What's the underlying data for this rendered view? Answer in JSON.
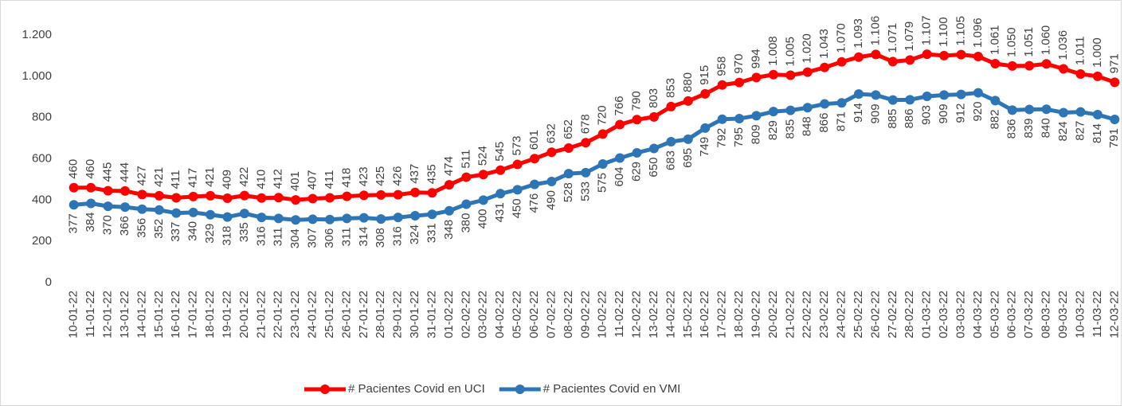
{
  "chart_data": {
    "type": "line",
    "categories": [
      "10-01-22",
      "11-01-22",
      "12-01-22",
      "13-01-22",
      "14-01-22",
      "15-01-22",
      "16-01-22",
      "17-01-22",
      "18-01-22",
      "19-01-22",
      "20-01-22",
      "21-01-22",
      "22-01-22",
      "23-01-22",
      "24-01-22",
      "25-01-22",
      "26-01-22",
      "27-01-22",
      "28-01-22",
      "29-01-22",
      "30-01-22",
      "31-01-22",
      "01-02-22",
      "02-02-22",
      "03-02-22",
      "04-02-22",
      "05-02-22",
      "06-02-22",
      "07-02-22",
      "08-02-22",
      "09-02-22",
      "10-02-22",
      "11-02-22",
      "12-02-22",
      "13-02-22",
      "14-02-22",
      "15-02-22",
      "16-02-22",
      "17-02-22",
      "18-02-22",
      "19-02-22",
      "20-02-22",
      "21-02-22",
      "22-02-22",
      "23-02-22",
      "24-02-22",
      "25-02-22",
      "26-02-22",
      "27-02-22",
      "28-02-22",
      "01-03-22",
      "02-03-22",
      "03-03-22",
      "04-03-22",
      "05-03-22",
      "06-03-22",
      "07-03-22",
      "08-03-22",
      "09-03-22",
      "10-03-22",
      "11-03-22",
      "12-03-22"
    ],
    "series": [
      {
        "name": "# Pacientes Covid en UCI",
        "color": "#ff0000",
        "values": [
          460,
          460,
          445,
          444,
          427,
          421,
          411,
          417,
          421,
          409,
          422,
          410,
          412,
          401,
          407,
          411,
          418,
          423,
          425,
          426,
          437,
          435,
          474,
          511,
          524,
          545,
          573,
          601,
          632,
          652,
          678,
          720,
          766,
          790,
          803,
          853,
          880,
          915,
          958,
          970,
          994,
          1008,
          1005,
          1020,
          1043,
          1070,
          1093,
          1106,
          1071,
          1079,
          1107,
          1100,
          1105,
          1096,
          1061,
          1050,
          1051,
          1060,
          1036,
          1011,
          1000,
          971
        ],
        "value_labels": [
          "460",
          "460",
          "445",
          "444",
          "427",
          "421",
          "411",
          "417",
          "421",
          "409",
          "422",
          "410",
          "412",
          "401",
          "407",
          "411",
          "418",
          "423",
          "425",
          "426",
          "437",
          "435",
          "474",
          "511",
          "524",
          "545",
          "573",
          "601",
          "632",
          "652",
          "678",
          "720",
          "766",
          "790",
          "803",
          "853",
          "880",
          "915",
          "958",
          "970",
          "994",
          "1.008",
          "1.005",
          "1.020",
          "1.043",
          "1.070",
          "1.093",
          "1.106",
          "1.071",
          "1.079",
          "1.107",
          "1.100",
          "1.105",
          "1.096",
          "1.061",
          "1.050",
          "1.051",
          "1.060",
          "1.036",
          "1.011",
          "1.000",
          "971"
        ]
      },
      {
        "name": "# Pacientes Covid en VMI",
        "color": "#2e75b6",
        "values": [
          377,
          384,
          370,
          366,
          356,
          352,
          337,
          340,
          329,
          318,
          335,
          316,
          311,
          304,
          307,
          306,
          311,
          314,
          308,
          316,
          324,
          331,
          348,
          380,
          400,
          431,
          450,
          476,
          490,
          528,
          533,
          575,
          604,
          629,
          650,
          683,
          695,
          749,
          792,
          795,
          809,
          829,
          835,
          848,
          866,
          871,
          914,
          909,
          885,
          886,
          903,
          909,
          912,
          920,
          882,
          836,
          839,
          840,
          824,
          827,
          814,
          791
        ],
        "value_labels": [
          "377",
          "384",
          "370",
          "366",
          "356",
          "352",
          "337",
          "340",
          "329",
          "318",
          "335",
          "316",
          "311",
          "304",
          "307",
          "306",
          "311",
          "314",
          "308",
          "316",
          "324",
          "331",
          "348",
          "380",
          "400",
          "431",
          "450",
          "476",
          "490",
          "528",
          "533",
          "575",
          "604",
          "629",
          "650",
          "683",
          "695",
          "749",
          "792",
          "795",
          "809",
          "829",
          "835",
          "848",
          "866",
          "871",
          "914",
          "909",
          "885",
          "886",
          "903",
          "909",
          "912",
          "920",
          "882",
          "836",
          "839",
          "840",
          "824",
          "827",
          "814",
          "791"
        ]
      }
    ],
    "ylim": [
      0,
      1200
    ],
    "yticks": [
      0,
      200,
      400,
      600,
      800,
      {
        "value": 1000,
        "label": "1.000"
      },
      {
        "value": 1200,
        "label": "1.200"
      }
    ],
    "grid": false,
    "legend": "bottom"
  }
}
